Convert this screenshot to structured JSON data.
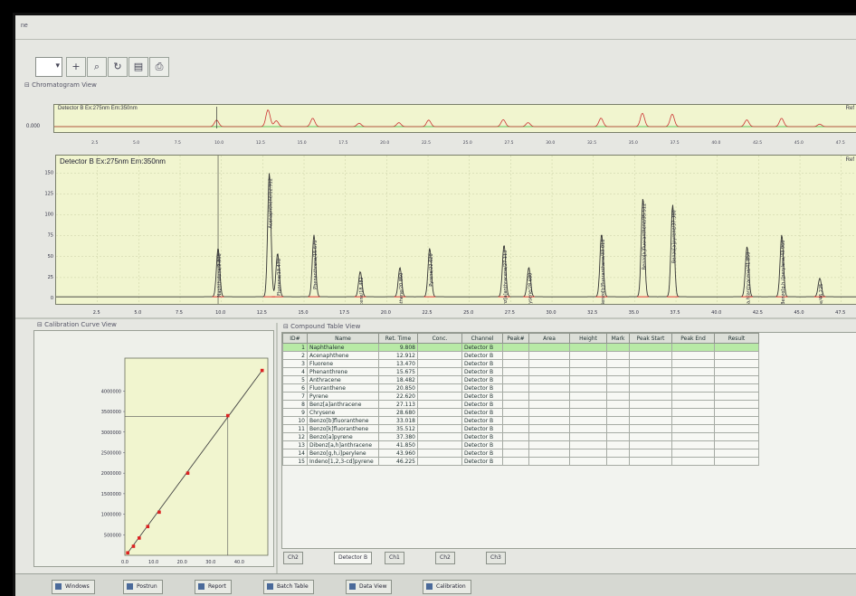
{
  "window": {
    "title_fragment": "ne"
  },
  "toolbar": {
    "dropdown_value": "",
    "buttons": [
      "add-icon",
      "zoom-icon",
      "refresh-icon",
      "chart-icon",
      "print-icon"
    ]
  },
  "chromatogram_view": {
    "title": "Chromatogram View"
  },
  "overview": {
    "trace_label": "Detector B Ex:275nm Em:350nm",
    "y_tick": "0.000",
    "right_label": "Ref"
  },
  "main_chrom": {
    "trace_label": "Detector B Ex:275nm Em:350nm",
    "right_label": "Ref",
    "y_ticks": [
      "150",
      "125",
      "100",
      "75",
      "50",
      "25",
      "0"
    ],
    "x_ticks": [
      "2.5",
      "5.0",
      "7.5",
      "10.0",
      "12.5",
      "15.0",
      "17.5",
      "20.0",
      "22.5",
      "25.0",
      "27.5",
      "30.0",
      "32.5",
      "35.0",
      "37.5",
      "40.0",
      "42.5",
      "45.0",
      "47.5"
    ],
    "peaks": [
      {
        "rt": 9.8,
        "h": 58,
        "label": "Naphthalene/9.808"
      },
      {
        "rt": 12.9,
        "h": 148,
        "label": "Acenaphthene/12.912"
      },
      {
        "rt": 13.4,
        "h": 52,
        "label": "Fluorene/13.470"
      },
      {
        "rt": 15.6,
        "h": 74,
        "label": "Phenanthrene/15.675"
      },
      {
        "rt": 18.4,
        "h": 30,
        "label": "Anthracene/18.482"
      },
      {
        "rt": 20.8,
        "h": 35,
        "label": "Fluoranthene/20.850"
      },
      {
        "rt": 22.6,
        "h": 58,
        "label": "Pyrene/22.620"
      },
      {
        "rt": 27.1,
        "h": 62,
        "label": "Benz[a]anthracene/27.113"
      },
      {
        "rt": 28.6,
        "h": 35,
        "label": "Chrysene/28.680"
      },
      {
        "rt": 33.0,
        "h": 75,
        "label": "Benzo[b]fluoranthene/33.018"
      },
      {
        "rt": 35.5,
        "h": 118,
        "label": "Benzo[k]fluoranthene/35.512"
      },
      {
        "rt": 37.3,
        "h": 110,
        "label": "Benzo[a]pyrene/37.380"
      },
      {
        "rt": 41.8,
        "h": 60,
        "label": "Dibenz[a,h]anthracene/41.850"
      },
      {
        "rt": 43.9,
        "h": 74,
        "label": "Benzo[g,h,i]perylene/43.960"
      },
      {
        "rt": 46.2,
        "h": 22,
        "label": "Indeno[1,2,3-cd]pyrene/46.225"
      }
    ]
  },
  "calibration": {
    "title": "Calibration Curve View",
    "y_ticks": [
      "4000000",
      "3500000",
      "3000000",
      "2500000",
      "2000000",
      "1500000",
      "1000000",
      "500000"
    ],
    "x_ticks": [
      "0.0",
      "10.0",
      "20.0",
      "30.0",
      "40.0"
    ],
    "points": [
      [
        1,
        60000
      ],
      [
        3,
        220000
      ],
      [
        5,
        420000
      ],
      [
        8,
        700000
      ],
      [
        12,
        1050000
      ],
      [
        22,
        2000000
      ],
      [
        36,
        3400000
      ],
      [
        48,
        4500000
      ]
    ],
    "xlim": [
      0,
      50
    ],
    "ylim": [
      0,
      4800000
    ],
    "cursor_x": 36
  },
  "compound_table": {
    "title": "Compound Table View",
    "columns": [
      "ID#",
      "Name",
      "Ret. Time",
      "Conc.",
      "Channel",
      "Peak#",
      "Area",
      "Height",
      "Mark",
      "Peak Start",
      "Peak End",
      "Result"
    ],
    "rows": [
      [
        "1",
        "Naphthalene",
        "9.808",
        "",
        "Detector B",
        "",
        "",
        "",
        "",
        "",
        "",
        ""
      ],
      [
        "2",
        "Acenaphthene",
        "12.912",
        "",
        "Detector B",
        "",
        "",
        "",
        "",
        "",
        "",
        ""
      ],
      [
        "3",
        "Fluorene",
        "13.470",
        "",
        "Detector B",
        "",
        "",
        "",
        "",
        "",
        "",
        ""
      ],
      [
        "4",
        "Phenanthrene",
        "15.675",
        "",
        "Detector B",
        "",
        "",
        "",
        "",
        "",
        "",
        ""
      ],
      [
        "5",
        "Anthracene",
        "18.482",
        "",
        "Detector B",
        "",
        "",
        "",
        "",
        "",
        "",
        ""
      ],
      [
        "6",
        "Fluoranthene",
        "20.850",
        "",
        "Detector B",
        "",
        "",
        "",
        "",
        "",
        "",
        ""
      ],
      [
        "7",
        "Pyrene",
        "22.620",
        "",
        "Detector B",
        "",
        "",
        "",
        "",
        "",
        "",
        ""
      ],
      [
        "8",
        "Benz[a]anthracene",
        "27.113",
        "",
        "Detector B",
        "",
        "",
        "",
        "",
        "",
        "",
        ""
      ],
      [
        "9",
        "Chrysene",
        "28.680",
        "",
        "Detector B",
        "",
        "",
        "",
        "",
        "",
        "",
        ""
      ],
      [
        "10",
        "Benzo[b]fluoranthene",
        "33.018",
        "",
        "Detector B",
        "",
        "",
        "",
        "",
        "",
        "",
        ""
      ],
      [
        "11",
        "Benzo[k]fluoranthene",
        "35.512",
        "",
        "Detector B",
        "",
        "",
        "",
        "",
        "",
        "",
        ""
      ],
      [
        "12",
        "Benzo[a]pyrene",
        "37.380",
        "",
        "Detector B",
        "",
        "",
        "",
        "",
        "",
        "",
        ""
      ],
      [
        "13",
        "Dibenz[a,h]anthracene",
        "41.850",
        "",
        "Detector B",
        "",
        "",
        "",
        "",
        "",
        "",
        ""
      ],
      [
        "14",
        "Benzo[g,h,i]perylene",
        "43.960",
        "",
        "Detector B",
        "",
        "",
        "",
        "",
        "",
        "",
        ""
      ],
      [
        "15",
        "Indeno[1,2,3-cd]pyrene",
        "46.225",
        "",
        "Detector B",
        "",
        "",
        "",
        "",
        "",
        "",
        ""
      ]
    ]
  },
  "bottom_tabs": [
    "Ch2",
    "Detector B",
    "Ch1",
    "Ch2",
    "Ch3"
  ],
  "taskbar": {
    "items": [
      "Windows",
      "Postrun",
      "Report",
      "Batch Table",
      "Data View",
      "Calibration"
    ]
  }
}
